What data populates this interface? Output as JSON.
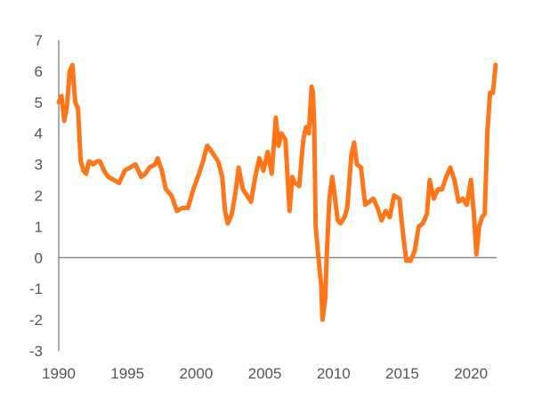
{
  "chart_data": {
    "type": "line",
    "title": "",
    "xlabel": "",
    "ylabel": "",
    "xlim": [
      1990,
      2022
    ],
    "ylim": [
      -3,
      7
    ],
    "x_ticks": [
      1990,
      1995,
      2000,
      2005,
      2010,
      2015,
      2020
    ],
    "y_ticks": [
      -3,
      -2,
      -1,
      0,
      1,
      2,
      3,
      4,
      5,
      6,
      7
    ],
    "x_tick_labels": [
      "1990",
      "1995",
      "2000",
      "2005",
      "2010",
      "2015",
      "2020"
    ],
    "y_tick_labels": [
      "-3",
      "-2",
      "-1",
      "0",
      "1",
      "2",
      "3",
      "4",
      "5",
      "6",
      "7"
    ],
    "grid": false,
    "line_color": "#ff7518",
    "axis_color": "#555555",
    "series": [
      {
        "x": [
          1990.0,
          1990.2,
          1990.4,
          1990.6,
          1990.8,
          1991.0,
          1991.2,
          1991.4,
          1991.6,
          1991.8,
          1992.0,
          1992.2,
          1992.5,
          1992.8,
          1993.0,
          1993.3,
          1993.6,
          1994.0,
          1994.4,
          1994.8,
          1995.2,
          1995.6,
          1996.0,
          1996.3,
          1996.6,
          1997.0,
          1997.2,
          1997.5,
          1997.8,
          1998.2,
          1998.6,
          1999.0,
          1999.4,
          1999.8,
          2000.2,
          2000.5,
          2000.8,
          2001.0,
          2001.3,
          2001.6,
          2001.9,
          2002.1,
          2002.3,
          2002.6,
          2002.9,
          2003.1,
          2003.4,
          2003.7,
          2004.0,
          2004.3,
          2004.6,
          2004.9,
          2005.2,
          2005.5,
          2005.8,
          2006.0,
          2006.2,
          2006.5,
          2006.8,
          2007.0,
          2007.2,
          2007.5,
          2007.8,
          2008.0,
          2008.2,
          2008.4,
          2008.5,
          2008.6,
          2008.7,
          2008.9,
          2009.1,
          2009.2,
          2009.4,
          2009.5,
          2009.7,
          2009.9,
          2010.0,
          2010.3,
          2010.5,
          2010.8,
          2011.0,
          2011.3,
          2011.5,
          2011.7,
          2012.0,
          2012.3,
          2012.6,
          2012.9,
          2013.2,
          2013.5,
          2013.8,
          2014.1,
          2014.4,
          2014.8,
          2015.0,
          2015.3,
          2015.6,
          2015.9,
          2016.2,
          2016.5,
          2016.8,
          2017.0,
          2017.3,
          2017.6,
          2017.9,
          2018.2,
          2018.5,
          2018.8,
          2019.1,
          2019.4,
          2019.7,
          2020.0,
          2020.2,
          2020.4,
          2020.6,
          2020.8,
          2021.0,
          2021.2,
          2021.4,
          2021.6,
          2021.8
        ],
        "y": [
          5.0,
          5.2,
          4.4,
          4.9,
          6.0,
          6.2,
          5.0,
          4.8,
          3.1,
          2.8,
          2.7,
          3.1,
          3.0,
          3.1,
          3.1,
          2.8,
          2.6,
          2.5,
          2.4,
          2.8,
          2.9,
          3.0,
          2.6,
          2.7,
          2.9,
          3.0,
          3.2,
          2.8,
          2.2,
          2.0,
          1.5,
          1.6,
          1.6,
          2.2,
          2.7,
          3.1,
          3.6,
          3.5,
          3.3,
          3.1,
          2.6,
          1.5,
          1.1,
          1.4,
          2.2,
          2.9,
          2.2,
          2.0,
          1.8,
          2.6,
          3.2,
          2.8,
          3.4,
          2.7,
          4.5,
          3.6,
          4.0,
          3.8,
          1.5,
          2.6,
          2.4,
          2.3,
          3.8,
          4.2,
          4.0,
          5.5,
          5.3,
          4.2,
          1.0,
          0.0,
          -0.9,
          -2.0,
          -1.3,
          0.0,
          1.9,
          2.6,
          2.3,
          1.2,
          1.1,
          1.3,
          1.6,
          3.3,
          3.7,
          3.0,
          2.9,
          1.7,
          1.8,
          1.9,
          1.6,
          1.2,
          1.5,
          1.3,
          2.0,
          1.9,
          1.0,
          -0.1,
          -0.1,
          0.2,
          1.0,
          1.1,
          1.4,
          2.5,
          1.9,
          2.2,
          2.2,
          2.6,
          2.9,
          2.5,
          1.8,
          1.9,
          1.7,
          2.5,
          1.5,
          0.1,
          1.0,
          1.3,
          1.4,
          4.1,
          5.3,
          5.3,
          6.2
        ]
      }
    ]
  }
}
